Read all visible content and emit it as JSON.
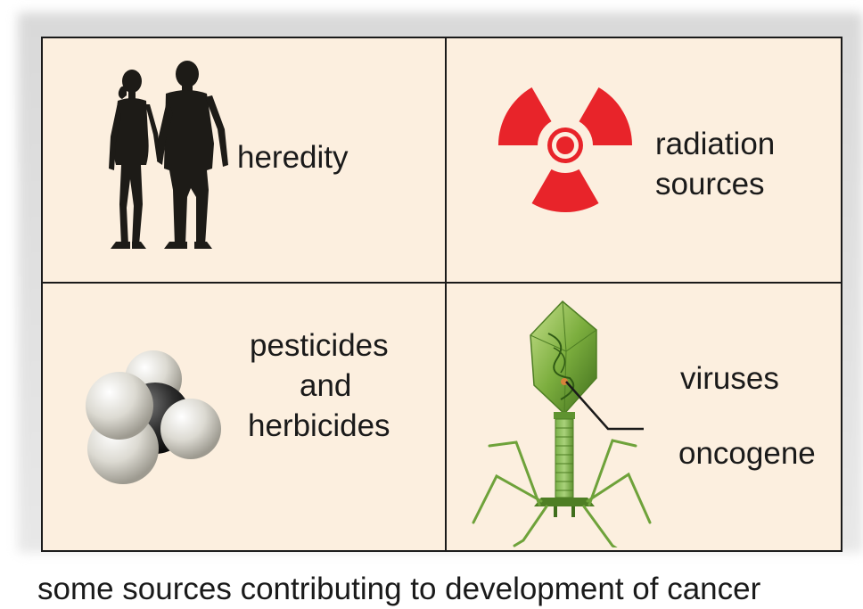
{
  "panels": {
    "heredity": {
      "label": "heredity"
    },
    "radiation": {
      "line1": "radiation",
      "line2": "sources"
    },
    "pesticides": {
      "line1": "pesticides",
      "line2": "and",
      "line3": "herbicides"
    },
    "viruses": {
      "label": "viruses",
      "callout": "oncogene"
    }
  },
  "caption": "some sources contributing to development of cancer",
  "colors": {
    "panel_background": "#fcefdf",
    "radiation_red": "#e8242a",
    "virus_green": "#6ea23a",
    "silhouette": "#1d1b17"
  },
  "icons": [
    "couple-silhouette-icon",
    "radiation-trefoil-icon",
    "methane-molecule-icon",
    "bacteriophage-icon"
  ]
}
